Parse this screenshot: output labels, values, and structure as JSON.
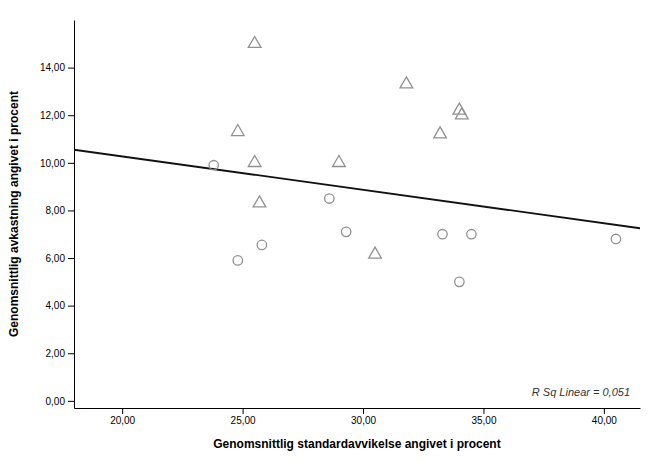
{
  "chart_data": {
    "type": "scatter",
    "xlabel": "Genomsnittlig standardavvikelse angivet i procent",
    "ylabel": "Genomsnittlig avkastning angivet i procent",
    "xlim": [
      18.0,
      41.5
    ],
    "ylim": [
      -0.3,
      16.0
    ],
    "xticks": [
      {
        "value": 20,
        "label": "20,00"
      },
      {
        "value": 25,
        "label": "25,00"
      },
      {
        "value": 30,
        "label": "30,00"
      },
      {
        "value": 35,
        "label": "35,00"
      },
      {
        "value": 40,
        "label": "40,00"
      }
    ],
    "yticks": [
      {
        "value": 0.0,
        "label": "0,00"
      },
      {
        "value": 2.0,
        "label": "2,00"
      },
      {
        "value": 4.0,
        "label": "4,00"
      },
      {
        "value": 6.0,
        "label": "6,00"
      },
      {
        "value": 8.0,
        "label": "8,00"
      },
      {
        "value": 10.0,
        "label": "10,00"
      },
      {
        "value": 12.0,
        "label": "12,00"
      },
      {
        "value": 14.0,
        "label": "14,00"
      }
    ],
    "grid": false,
    "annotation": "R Sq Linear = 0,051",
    "series": [
      {
        "type": "line",
        "color": "#111111",
        "line_style": "solid",
        "x": [
          18.0,
          41.5
        ],
        "values": [
          10.55,
          7.25
        ]
      },
      {
        "type": "scatter",
        "marker": "triangle",
        "color": "#909090",
        "x": [
          24.8,
          25.5,
          25.5,
          25.7,
          29.0,
          31.8,
          33.2,
          34.0,
          34.1,
          30.5
        ],
        "values": [
          11.3,
          15.0,
          10.0,
          8.3,
          10.0,
          13.3,
          11.2,
          12.2,
          12.0,
          6.15
        ]
      },
      {
        "type": "scatter",
        "marker": "circle",
        "color": "#909090",
        "x": [
          23.8,
          24.8,
          25.8,
          28.6,
          29.3,
          33.3,
          34.0,
          34.5,
          40.5
        ],
        "values": [
          9.9,
          5.9,
          6.55,
          8.5,
          7.1,
          7.0,
          5.0,
          7.0,
          6.8
        ]
      }
    ]
  }
}
